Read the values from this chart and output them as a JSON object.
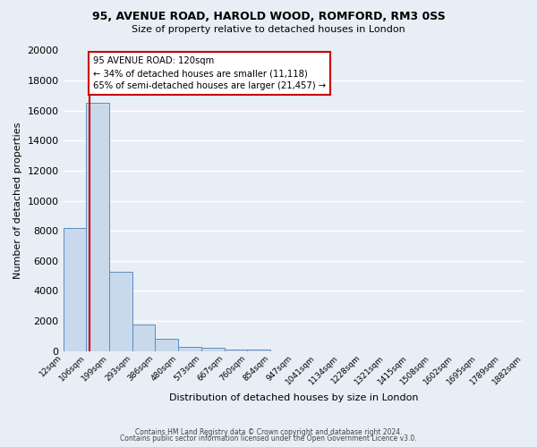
{
  "title_line1": "95, AVENUE ROAD, HAROLD WOOD, ROMFORD, RM3 0SS",
  "title_line2": "Size of property relative to detached houses in London",
  "xlabel": "Distribution of detached houses by size in London",
  "ylabel": "Number of detached properties",
  "bin_labels": [
    "12sqm",
    "106sqm",
    "199sqm",
    "293sqm",
    "386sqm",
    "480sqm",
    "573sqm",
    "667sqm",
    "760sqm",
    "854sqm",
    "947sqm",
    "1041sqm",
    "1134sqm",
    "1228sqm",
    "1321sqm",
    "1415sqm",
    "1508sqm",
    "1602sqm",
    "1695sqm",
    "1789sqm",
    "1882sqm"
  ],
  "bar_values": [
    8200,
    16500,
    5300,
    1750,
    800,
    300,
    200,
    130,
    80,
    0,
    0,
    0,
    0,
    0,
    0,
    0,
    0,
    0,
    0,
    0
  ],
  "bar_color": "#c9d9ec",
  "bar_edge_color": "#5b8dc0",
  "bg_color": "#e8eef5",
  "grid_color": "#ffffff",
  "property_line_color": "#cc0000",
  "annotation_line1": "95 AVENUE ROAD: 120sqm",
  "annotation_line2": "← 34% of detached houses are smaller (11,118)",
  "annotation_line3": "65% of semi-detached houses are larger (21,457) →",
  "annotation_box_color": "#ffffff",
  "annotation_box_edge_color": "#cc0000",
  "ylim": [
    0,
    20000
  ],
  "yticks": [
    0,
    2000,
    4000,
    6000,
    8000,
    10000,
    12000,
    14000,
    16000,
    18000,
    20000
  ],
  "bin_edge_vals": [
    12,
    106,
    199,
    293,
    386,
    480,
    573,
    667,
    760,
    854,
    947,
    1041,
    1134,
    1228,
    1321,
    1415,
    1508,
    1602,
    1695,
    1789,
    1882
  ],
  "property_sqm": 120,
  "footer_line1": "Contains HM Land Registry data © Crown copyright and database right 2024.",
  "footer_line2": "Contains public sector information licensed under the Open Government Licence v3.0."
}
